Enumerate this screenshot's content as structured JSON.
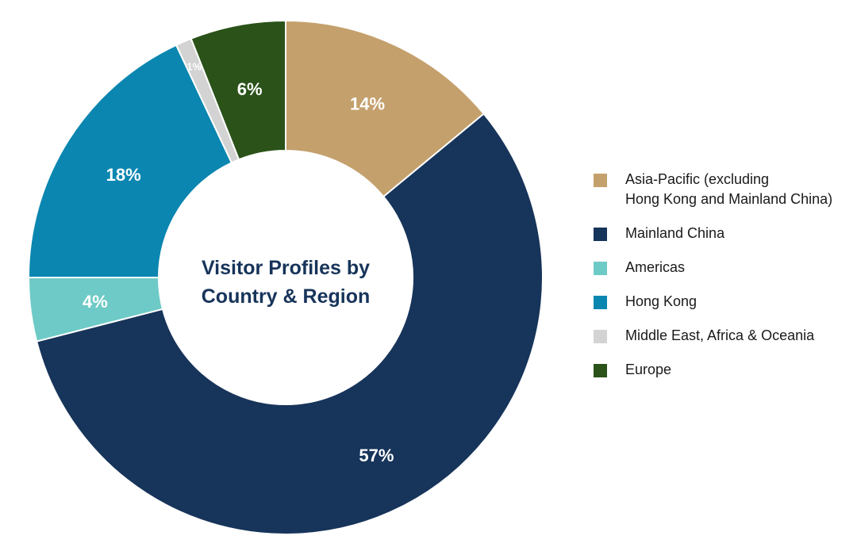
{
  "chart_data": {
    "type": "pie",
    "title_lines": [
      "Visitor Profiles by",
      "Country & Region"
    ],
    "slices": [
      {
        "name": "Asia-Pacific (excluding Hong Kong and Mainland China)",
        "legend_lines": [
          "Asia-Pacific (excluding",
          "Hong Kong and Mainland China)"
        ],
        "value": 14,
        "label": "14%",
        "color": "#c4a06c"
      },
      {
        "name": "Mainland China",
        "legend_lines": [
          "Mainland China"
        ],
        "value": 57,
        "label": "57%",
        "color": "#17345a"
      },
      {
        "name": "Americas",
        "legend_lines": [
          "Americas"
        ],
        "value": 4,
        "label": "4%",
        "color": "#6ecac6"
      },
      {
        "name": "Hong Kong",
        "legend_lines": [
          "Hong Kong"
        ],
        "value": 18,
        "label": "18%",
        "color": "#0a86b0"
      },
      {
        "name": "Middle East, Africa & Oceania",
        "legend_lines": [
          "Middle East, Africa & Oceania"
        ],
        "value": 1,
        "label": "1%",
        "color": "#d3d3d3"
      },
      {
        "name": "Europe",
        "legend_lines": [
          "Europe"
        ],
        "value": 6,
        "label": "6%",
        "color": "#2a5219"
      }
    ],
    "legend_position": "right"
  }
}
